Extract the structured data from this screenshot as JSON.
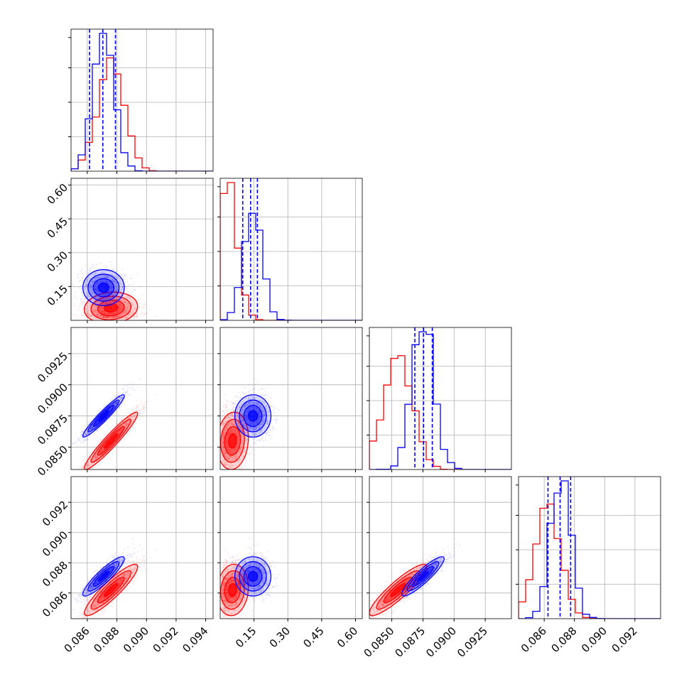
{
  "chart_data": {
    "type": "corner",
    "title": "",
    "colors": {
      "red": "#ff0000",
      "blue": "#0000ff"
    },
    "series": [
      {
        "color": "#ff0000",
        "means": [
          0.0876,
          0.055,
          0.0855,
          0.0862
        ],
        "sds": [
          0.0009,
          0.035,
          0.00115,
          0.00085
        ],
        "corr": [
          [
            1.0,
            0.1,
            0.95,
            0.9
          ],
          [
            0.1,
            1.0,
            0.1,
            0.1
          ],
          [
            0.95,
            0.1,
            1.0,
            0.9
          ],
          [
            0.9,
            0.1,
            0.9,
            1.0
          ]
        ]
      },
      {
        "color": "#0000ff",
        "means": [
          0.0871,
          0.145,
          0.0875,
          0.0871
        ],
        "sds": [
          0.0007,
          0.04,
          0.00085,
          0.00065
        ],
        "corr": [
          [
            1.0,
            0.0,
            0.95,
            0.9
          ],
          [
            0.0,
            1.0,
            0.0,
            0.0
          ],
          [
            0.95,
            0.0,
            1.0,
            0.9
          ],
          [
            0.9,
            0.0,
            0.9,
            1.0
          ]
        ]
      }
    ],
    "blue_quantiles": [
      [
        0.08615,
        0.08705,
        0.0879
      ],
      [
        0.1,
        0.135,
        0.165
      ],
      [
        0.08685,
        0.08755,
        0.08825
      ],
      [
        0.08625,
        0.08705,
        0.08775
      ]
    ],
    "axes": [
      {
        "range": [
          0.0849,
          0.0945
        ],
        "ticks": [
          0.086,
          0.088,
          0.09,
          0.092,
          0.094
        ],
        "tick_labels": [
          "0.086",
          "0.088",
          "0.090",
          "0.092",
          "0.094"
        ]
      },
      {
        "range": [
          0.0,
          0.63
        ],
        "ticks": [
          0.15,
          0.3,
          0.45,
          0.6
        ],
        "tick_labels": [
          "0.15",
          "0.30",
          "0.45",
          "0.60"
        ]
      },
      {
        "range": [
          0.0832,
          0.0946
        ],
        "ticks": [
          0.085,
          0.0875,
          0.09,
          0.0925
        ],
        "tick_labels": [
          "0.0850",
          "0.0875",
          "0.0900",
          "0.0925"
        ]
      },
      {
        "range": [
          0.0843,
          0.0937
        ],
        "ticks": [
          0.086,
          0.088,
          0.09,
          0.092
        ],
        "tick_labels": [
          "0.086",
          "0.088",
          "0.090",
          "0.092"
        ]
      }
    ],
    "grid": true
  }
}
